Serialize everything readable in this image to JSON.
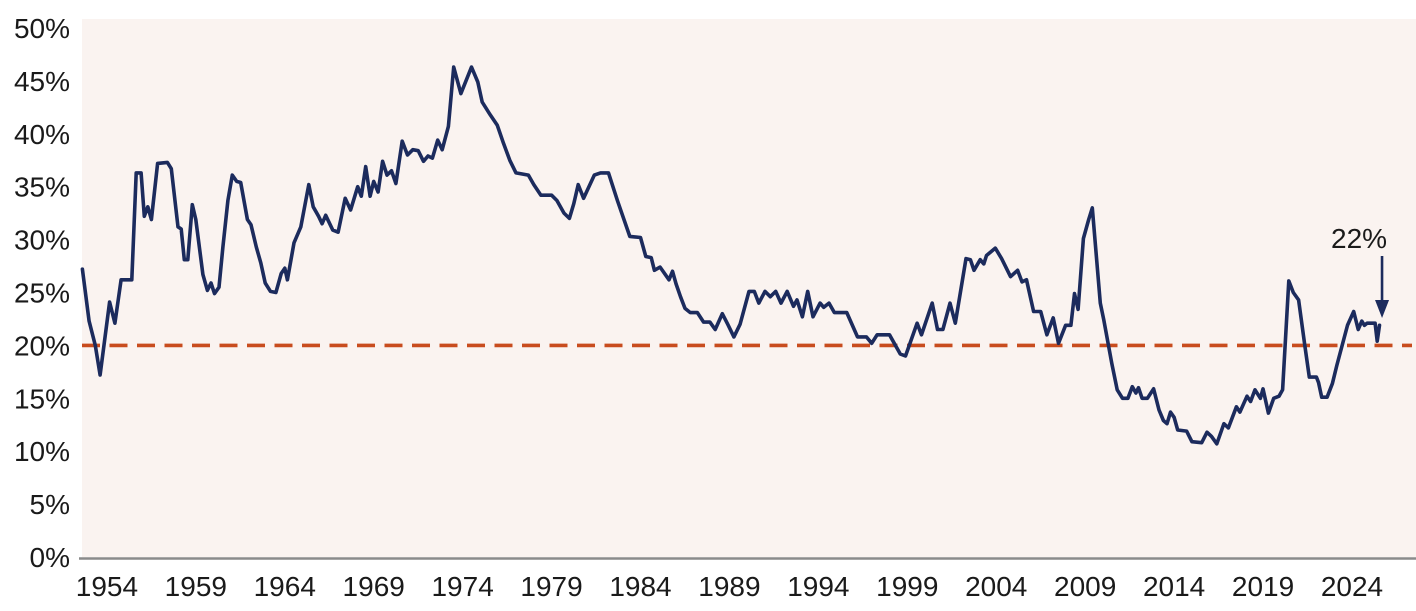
{
  "chart_data": {
    "type": "line",
    "title": "",
    "x_axis": {
      "label": "",
      "range": [
        1952.6,
        2027.6
      ],
      "tick_years": [
        1954,
        1959,
        1964,
        1969,
        1974,
        1979,
        1984,
        1989,
        1994,
        1999,
        2004,
        2009,
        2014,
        2019,
        2024
      ],
      "tick_labels": [
        "1954",
        "1959",
        "1964",
        "1969",
        "1974",
        "1979",
        "1984",
        "1989",
        "1994",
        "1999",
        "2004",
        "2009",
        "2014",
        "2019",
        "2024"
      ]
    },
    "y_axis": {
      "label": "",
      "range": [
        0,
        50
      ],
      "tick_values": [
        0,
        5,
        10,
        15,
        20,
        25,
        30,
        35,
        40,
        45,
        50
      ],
      "tick_labels": [
        "0%",
        "5%",
        "10%",
        "15%",
        "20%",
        "25%",
        "30%",
        "35%",
        "40%",
        "45%",
        "50%"
      ]
    },
    "grid": "off",
    "legend": "none",
    "reference_line": {
      "value": 20,
      "style": "dashed"
    },
    "annotation": {
      "label": "22%",
      "x": 2025.55,
      "y": 21.9
    },
    "series": [
      {
        "name": "value",
        "points": [
          [
            1952.62,
            27.2
          ],
          [
            1953.0,
            22.3
          ],
          [
            1953.35,
            20.0
          ],
          [
            1953.62,
            17.2
          ],
          [
            1954.15,
            24.1
          ],
          [
            1954.45,
            22.1
          ],
          [
            1954.8,
            26.2
          ],
          [
            1955.4,
            26.2
          ],
          [
            1955.65,
            36.3
          ],
          [
            1955.92,
            36.3
          ],
          [
            1956.1,
            32.2
          ],
          [
            1956.3,
            33.1
          ],
          [
            1956.5,
            31.9
          ],
          [
            1956.85,
            37.2
          ],
          [
            1957.4,
            37.3
          ],
          [
            1957.62,
            36.7
          ],
          [
            1958.0,
            31.2
          ],
          [
            1958.18,
            31.0
          ],
          [
            1958.35,
            28.1
          ],
          [
            1958.55,
            28.1
          ],
          [
            1958.8,
            33.3
          ],
          [
            1959.0,
            31.9
          ],
          [
            1959.4,
            26.7
          ],
          [
            1959.65,
            25.2
          ],
          [
            1959.85,
            25.9
          ],
          [
            1960.05,
            24.9
          ],
          [
            1960.3,
            25.5
          ],
          [
            1960.52,
            29.3
          ],
          [
            1960.8,
            33.7
          ],
          [
            1961.05,
            36.1
          ],
          [
            1961.3,
            35.5
          ],
          [
            1961.52,
            35.4
          ],
          [
            1961.9,
            31.9
          ],
          [
            1962.1,
            31.4
          ],
          [
            1962.4,
            29.3
          ],
          [
            1962.65,
            27.8
          ],
          [
            1962.9,
            25.9
          ],
          [
            1963.2,
            25.1
          ],
          [
            1963.5,
            25.0
          ],
          [
            1963.8,
            26.8
          ],
          [
            1964.0,
            27.3
          ],
          [
            1964.15,
            26.2
          ],
          [
            1964.35,
            28.1
          ],
          [
            1964.52,
            29.7
          ],
          [
            1964.9,
            31.2
          ],
          [
            1965.35,
            35.2
          ],
          [
            1965.6,
            33.1
          ],
          [
            1965.9,
            32.2
          ],
          [
            1966.1,
            31.5
          ],
          [
            1966.3,
            32.3
          ],
          [
            1966.7,
            30.9
          ],
          [
            1967.0,
            30.7
          ],
          [
            1967.4,
            33.9
          ],
          [
            1967.7,
            32.8
          ],
          [
            1968.1,
            35.0
          ],
          [
            1968.3,
            34.1
          ],
          [
            1968.55,
            36.9
          ],
          [
            1968.8,
            34.1
          ],
          [
            1969.0,
            35.5
          ],
          [
            1969.25,
            34.5
          ],
          [
            1969.5,
            37.4
          ],
          [
            1969.75,
            36.1
          ],
          [
            1970.0,
            36.5
          ],
          [
            1970.25,
            35.3
          ],
          [
            1970.6,
            39.3
          ],
          [
            1970.9,
            38.0
          ],
          [
            1971.2,
            38.5
          ],
          [
            1971.5,
            38.4
          ],
          [
            1971.8,
            37.4
          ],
          [
            1972.05,
            37.9
          ],
          [
            1972.3,
            37.7
          ],
          [
            1972.6,
            39.4
          ],
          [
            1972.85,
            38.5
          ],
          [
            1973.2,
            40.7
          ],
          [
            1973.5,
            46.3
          ],
          [
            1973.9,
            43.8
          ],
          [
            1974.5,
            46.3
          ],
          [
            1974.85,
            44.9
          ],
          [
            1975.1,
            43.0
          ],
          [
            1975.55,
            41.8
          ],
          [
            1975.95,
            40.8
          ],
          [
            1976.3,
            39.1
          ],
          [
            1976.65,
            37.5
          ],
          [
            1977.0,
            36.3
          ],
          [
            1977.7,
            36.1
          ],
          [
            1978.0,
            35.2
          ],
          [
            1978.4,
            34.2
          ],
          [
            1979.0,
            34.2
          ],
          [
            1979.3,
            33.7
          ],
          [
            1979.7,
            32.5
          ],
          [
            1980.0,
            32.0
          ],
          [
            1980.25,
            33.4
          ],
          [
            1980.5,
            35.2
          ],
          [
            1980.8,
            33.9
          ],
          [
            1981.4,
            36.1
          ],
          [
            1981.75,
            36.3
          ],
          [
            1982.2,
            36.3
          ],
          [
            1982.7,
            33.7
          ],
          [
            1983.4,
            30.3
          ],
          [
            1984.0,
            30.2
          ],
          [
            1984.3,
            28.4
          ],
          [
            1984.6,
            28.3
          ],
          [
            1984.78,
            27.1
          ],
          [
            1985.1,
            27.4
          ],
          [
            1985.6,
            26.2
          ],
          [
            1985.8,
            27.0
          ],
          [
            1986.0,
            25.8
          ],
          [
            1986.25,
            24.6
          ],
          [
            1986.5,
            23.5
          ],
          [
            1986.8,
            23.1
          ],
          [
            1987.2,
            23.1
          ],
          [
            1987.55,
            22.2
          ],
          [
            1987.9,
            22.2
          ],
          [
            1988.2,
            21.5
          ],
          [
            1988.6,
            23.0
          ],
          [
            1988.9,
            22.0
          ],
          [
            1989.25,
            20.8
          ],
          [
            1989.6,
            22.0
          ],
          [
            1990.1,
            25.1
          ],
          [
            1990.4,
            25.1
          ],
          [
            1990.65,
            24.0
          ],
          [
            1991.0,
            25.1
          ],
          [
            1991.3,
            24.6
          ],
          [
            1991.6,
            25.1
          ],
          [
            1991.9,
            24.0
          ],
          [
            1992.25,
            25.1
          ],
          [
            1992.6,
            23.7
          ],
          [
            1992.8,
            24.3
          ],
          [
            1993.1,
            22.7
          ],
          [
            1993.4,
            25.1
          ],
          [
            1993.7,
            22.7
          ],
          [
            1994.1,
            24.0
          ],
          [
            1994.3,
            23.6
          ],
          [
            1994.6,
            24.0
          ],
          [
            1994.9,
            23.1
          ],
          [
            1995.6,
            23.1
          ],
          [
            1996.2,
            20.8
          ],
          [
            1996.7,
            20.8
          ],
          [
            1997.0,
            20.2
          ],
          [
            1997.3,
            21.0
          ],
          [
            1998.0,
            21.0
          ],
          [
            1998.6,
            19.2
          ],
          [
            1998.9,
            19.0
          ],
          [
            1999.55,
            22.1
          ],
          [
            1999.8,
            21.0
          ],
          [
            2000.4,
            24.0
          ],
          [
            2000.7,
            21.5
          ],
          [
            2001.0,
            21.5
          ],
          [
            2001.4,
            24.0
          ],
          [
            2001.7,
            22.1
          ],
          [
            2002.3,
            28.2
          ],
          [
            2002.55,
            28.1
          ],
          [
            2002.75,
            27.1
          ],
          [
            2003.1,
            28.1
          ],
          [
            2003.3,
            27.7
          ],
          [
            2003.45,
            28.5
          ],
          [
            2003.95,
            29.2
          ],
          [
            2004.3,
            28.2
          ],
          [
            2004.8,
            26.5
          ],
          [
            2005.2,
            27.1
          ],
          [
            2005.45,
            26.0
          ],
          [
            2005.7,
            26.2
          ],
          [
            2006.1,
            23.2
          ],
          [
            2006.5,
            23.2
          ],
          [
            2006.85,
            21.0
          ],
          [
            2007.2,
            22.6
          ],
          [
            2007.5,
            20.2
          ],
          [
            2007.9,
            21.9
          ],
          [
            2008.2,
            21.9
          ],
          [
            2008.4,
            24.9
          ],
          [
            2008.6,
            23.4
          ],
          [
            2008.9,
            30.1
          ],
          [
            2009.2,
            31.9
          ],
          [
            2009.4,
            33.0
          ],
          [
            2009.85,
            24.0
          ],
          [
            2010.05,
            22.4
          ],
          [
            2010.5,
            18.3
          ],
          [
            2010.8,
            15.8
          ],
          [
            2011.1,
            15.0
          ],
          [
            2011.4,
            15.0
          ],
          [
            2011.65,
            16.1
          ],
          [
            2011.85,
            15.5
          ],
          [
            2012.0,
            16.0
          ],
          [
            2012.2,
            15.0
          ],
          [
            2012.5,
            15.0
          ],
          [
            2012.85,
            15.9
          ],
          [
            2013.15,
            13.9
          ],
          [
            2013.4,
            12.9
          ],
          [
            2013.6,
            12.6
          ],
          [
            2013.8,
            13.7
          ],
          [
            2014.0,
            13.2
          ],
          [
            2014.2,
            12.0
          ],
          [
            2014.7,
            11.9
          ],
          [
            2015.0,
            10.9
          ],
          [
            2015.55,
            10.8
          ],
          [
            2015.85,
            11.8
          ],
          [
            2016.1,
            11.4
          ],
          [
            2016.4,
            10.7
          ],
          [
            2016.8,
            12.6
          ],
          [
            2017.05,
            12.2
          ],
          [
            2017.5,
            14.2
          ],
          [
            2017.7,
            13.7
          ],
          [
            2018.1,
            15.2
          ],
          [
            2018.3,
            14.7
          ],
          [
            2018.55,
            15.8
          ],
          [
            2018.85,
            15.0
          ],
          [
            2019.0,
            15.9
          ],
          [
            2019.3,
            13.6
          ],
          [
            2019.6,
            15.0
          ],
          [
            2019.9,
            15.2
          ],
          [
            2020.1,
            15.8
          ],
          [
            2020.45,
            26.1
          ],
          [
            2020.7,
            25.0
          ],
          [
            2021.0,
            24.3
          ],
          [
            2021.35,
            20.0
          ],
          [
            2021.6,
            17.0
          ],
          [
            2022.0,
            17.0
          ],
          [
            2022.12,
            16.5
          ],
          [
            2022.3,
            15.1
          ],
          [
            2022.6,
            15.1
          ],
          [
            2022.9,
            16.4
          ],
          [
            2023.15,
            18.1
          ],
          [
            2023.75,
            21.9
          ],
          [
            2024.1,
            23.2
          ],
          [
            2024.35,
            21.5
          ],
          [
            2024.55,
            22.3
          ],
          [
            2024.7,
            21.9
          ],
          [
            2024.85,
            22.1
          ],
          [
            2025.3,
            22.1
          ],
          [
            2025.42,
            20.4
          ],
          [
            2025.55,
            21.9
          ]
        ]
      }
    ]
  },
  "colors": {
    "line": "#1c2b5d",
    "reference": "#c84c1e",
    "plot_bg": "#faf3f0",
    "text": "#1a1a1a",
    "axis": "#8a8a8a",
    "page_bg": "#ffffff"
  }
}
